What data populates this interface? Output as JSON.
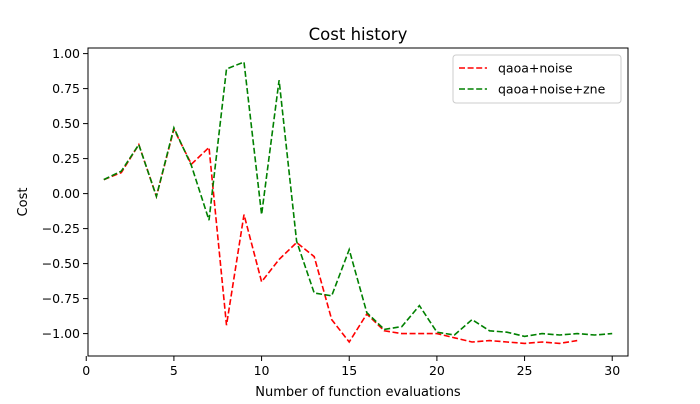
{
  "chart_data": {
    "type": "line",
    "title": "Cost history",
    "xlabel": "Number of function evaluations",
    "ylabel": "Cost",
    "xlim": [
      0.1,
      30.9
    ],
    "ylim": [
      -1.16,
      1.04
    ],
    "xticks": [
      0,
      5,
      10,
      15,
      20,
      25,
      30
    ],
    "xtick_labels": [
      "0",
      "5",
      "10",
      "15",
      "20",
      "25",
      "30"
    ],
    "yticks": [
      -1.0,
      -0.75,
      -0.5,
      -0.25,
      0.0,
      0.25,
      0.5,
      0.75,
      1.0
    ],
    "ytick_labels": [
      "−1.00",
      "−0.75",
      "−0.50",
      "−0.25",
      "0.00",
      "0.25",
      "0.50",
      "0.75",
      "1.00"
    ],
    "grid": false,
    "legend_position": "top-right",
    "series": [
      {
        "name": "qaoa+noise",
        "color": "#ff0000",
        "linestyle": "dashed",
        "x": [
          1,
          2,
          3,
          4,
          5,
          6,
          7,
          8,
          9,
          10,
          11,
          12,
          13,
          14,
          15,
          16,
          17,
          18,
          19,
          20,
          21,
          22,
          23,
          24,
          25,
          26,
          27,
          28
        ],
        "y": [
          0.1,
          0.15,
          0.35,
          -0.02,
          0.46,
          0.21,
          0.33,
          -0.94,
          -0.15,
          -0.63,
          -0.47,
          -0.35,
          -0.45,
          -0.9,
          -1.06,
          -0.86,
          -0.98,
          -1.0,
          -1.0,
          -1.0,
          -1.03,
          -1.06,
          -1.05,
          -1.06,
          -1.07,
          -1.06,
          -1.07,
          -1.05
        ]
      },
      {
        "name": "qaoa+noise+zne",
        "color": "#008000",
        "linestyle": "dashed",
        "x": [
          1,
          2,
          3,
          4,
          5,
          6,
          7,
          8,
          9,
          10,
          11,
          12,
          13,
          14,
          15,
          16,
          17,
          18,
          19,
          20,
          21,
          22,
          23,
          24,
          25,
          26,
          27,
          28,
          29,
          30
        ],
        "y": [
          0.1,
          0.16,
          0.35,
          -0.02,
          0.47,
          0.2,
          -0.19,
          0.89,
          0.94,
          -0.15,
          0.81,
          -0.34,
          -0.71,
          -0.73,
          -0.4,
          -0.85,
          -0.97,
          -0.95,
          -0.8,
          -0.99,
          -1.01,
          -0.9,
          -0.98,
          -0.99,
          -1.02,
          -1.0,
          -1.01,
          -1.0,
          -1.01,
          -1.0
        ]
      }
    ]
  }
}
